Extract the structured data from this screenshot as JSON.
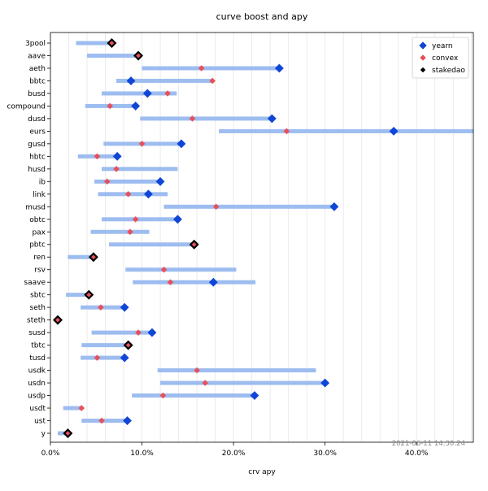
{
  "chart_data": {
    "type": "range-dot",
    "title": "curve boost and apy",
    "xlabel": "crv apy",
    "x_tick_format": "percent",
    "xlim": [
      0,
      0.462
    ],
    "xticks": [
      0,
      0.1,
      0.2,
      0.3,
      0.4
    ],
    "xtick_labels": [
      "0.0%",
      "10.0%",
      "20.0%",
      "30.0%",
      "40.0%"
    ],
    "grid": "vertical",
    "legend_position": "top-right",
    "timestamp": "2021-06-11 14:30:24",
    "colors": {
      "range_bar": "#9dbdf0",
      "yearn": "#1046d6",
      "convex": "#e8505a",
      "stakedao": "#000000",
      "grid": "#e6e6e6"
    },
    "series": [
      {
        "name": "yearn",
        "marker": "diamond",
        "color": "#1046d6"
      },
      {
        "name": "convex",
        "marker": "diamond",
        "color": "#e8505a"
      },
      {
        "name": "stakedao",
        "marker": "diamond",
        "color": "#000000"
      }
    ],
    "pools": [
      {
        "name": "3pool",
        "min": 0.028,
        "max": 0.068,
        "yearn": 0.067,
        "convex": 0.067,
        "stakedao": 0.067
      },
      {
        "name": "aave",
        "min": 0.04,
        "max": 0.096,
        "yearn": 0.096,
        "convex": 0.096,
        "stakedao": 0.096
      },
      {
        "name": "aeth",
        "min": 0.1,
        "max": 0.25,
        "yearn": 0.25,
        "convex": 0.165,
        "stakedao": null
      },
      {
        "name": "bbtc",
        "min": 0.072,
        "max": 0.178,
        "yearn": 0.088,
        "convex": 0.177,
        "stakedao": null
      },
      {
        "name": "busd",
        "min": 0.056,
        "max": 0.138,
        "yearn": 0.106,
        "convex": 0.128,
        "stakedao": null
      },
      {
        "name": "compound",
        "min": 0.038,
        "max": 0.093,
        "yearn": 0.093,
        "convex": 0.065,
        "stakedao": null
      },
      {
        "name": "dusd",
        "min": 0.098,
        "max": 0.242,
        "yearn": 0.242,
        "convex": 0.155,
        "stakedao": null
      },
      {
        "name": "eurs",
        "min": 0.184,
        "max": 0.462,
        "yearn": 0.375,
        "convex": 0.258,
        "stakedao": null
      },
      {
        "name": "gusd",
        "min": 0.058,
        "max": 0.143,
        "yearn": 0.143,
        "convex": 0.1,
        "stakedao": null
      },
      {
        "name": "hbtc",
        "min": 0.03,
        "max": 0.074,
        "yearn": 0.073,
        "convex": 0.051,
        "stakedao": null
      },
      {
        "name": "husd",
        "min": 0.056,
        "max": 0.139,
        "yearn": null,
        "convex": 0.072,
        "stakedao": null
      },
      {
        "name": "ib",
        "min": 0.048,
        "max": 0.12,
        "yearn": 0.12,
        "convex": 0.062,
        "stakedao": null
      },
      {
        "name": "link",
        "min": 0.052,
        "max": 0.128,
        "yearn": 0.107,
        "convex": 0.085,
        "stakedao": null
      },
      {
        "name": "musd",
        "min": 0.124,
        "max": 0.31,
        "yearn": 0.31,
        "convex": 0.181,
        "stakedao": null
      },
      {
        "name": "obtc",
        "min": 0.056,
        "max": 0.139,
        "yearn": 0.139,
        "convex": 0.093,
        "stakedao": null
      },
      {
        "name": "pax",
        "min": 0.044,
        "max": 0.108,
        "yearn": null,
        "convex": 0.087,
        "stakedao": null
      },
      {
        "name": "pbtc",
        "min": 0.064,
        "max": 0.157,
        "yearn": 0.157,
        "convex": 0.157,
        "stakedao": 0.157
      },
      {
        "name": "ren",
        "min": 0.019,
        "max": 0.047,
        "yearn": 0.047,
        "convex": 0.047,
        "stakedao": 0.047
      },
      {
        "name": "rsv",
        "min": 0.082,
        "max": 0.203,
        "yearn": null,
        "convex": 0.124,
        "stakedao": null
      },
      {
        "name": "saave",
        "min": 0.09,
        "max": 0.224,
        "yearn": 0.178,
        "convex": 0.131,
        "stakedao": null
      },
      {
        "name": "sbtc",
        "min": 0.017,
        "max": 0.042,
        "yearn": 0.042,
        "convex": 0.042,
        "stakedao": 0.042
      },
      {
        "name": "seth",
        "min": 0.033,
        "max": 0.081,
        "yearn": 0.081,
        "convex": 0.055,
        "stakedao": null
      },
      {
        "name": "steth",
        "min": 0.004,
        "max": 0.009,
        "yearn": 0.008,
        "convex": 0.008,
        "stakedao": 0.008
      },
      {
        "name": "susd",
        "min": 0.045,
        "max": 0.111,
        "yearn": 0.111,
        "convex": 0.096,
        "stakedao": null
      },
      {
        "name": "tbtc",
        "min": 0.034,
        "max": 0.085,
        "yearn": 0.085,
        "convex": 0.085,
        "stakedao": 0.085
      },
      {
        "name": "tusd",
        "min": 0.033,
        "max": 0.082,
        "yearn": 0.081,
        "convex": 0.051,
        "stakedao": null
      },
      {
        "name": "usdk",
        "min": 0.117,
        "max": 0.29,
        "yearn": null,
        "convex": 0.16,
        "stakedao": null
      },
      {
        "name": "usdn",
        "min": 0.12,
        "max": 0.3,
        "yearn": 0.3,
        "convex": 0.169,
        "stakedao": null
      },
      {
        "name": "usdp",
        "min": 0.089,
        "max": 0.223,
        "yearn": 0.223,
        "convex": 0.123,
        "stakedao": null
      },
      {
        "name": "usdt",
        "min": 0.014,
        "max": 0.034,
        "yearn": null,
        "convex": 0.034,
        "stakedao": null
      },
      {
        "name": "ust",
        "min": 0.034,
        "max": 0.084,
        "yearn": 0.084,
        "convex": 0.056,
        "stakedao": null
      },
      {
        "name": "y",
        "min": 0.008,
        "max": 0.02,
        "yearn": 0.019,
        "convex": 0.019,
        "stakedao": 0.019
      }
    ]
  }
}
